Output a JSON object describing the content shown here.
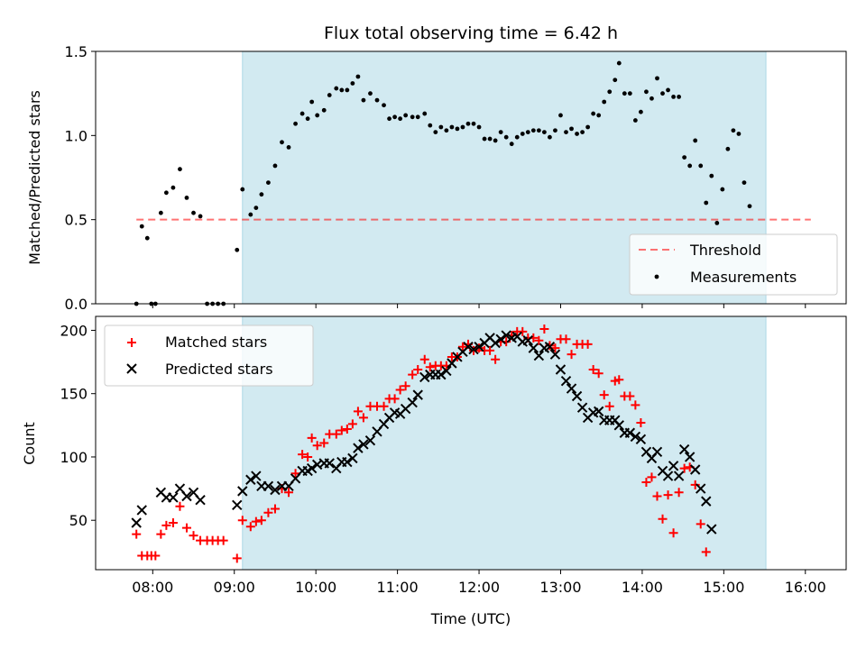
{
  "figure": {
    "title": "Flux total observing time = 6.42 h",
    "xlabel": "Time (UTC)",
    "x_ticks": [
      "08:00",
      "09:00",
      "10:00",
      "11:00",
      "12:00",
      "13:00",
      "14:00",
      "15:00",
      "16:00"
    ]
  },
  "colors": {
    "shade": "#add8e6",
    "threshold": "#ff0000",
    "measurements": "#000000",
    "matched": "#ff0000",
    "predicted": "#000000"
  },
  "chart_data": [
    {
      "type": "scatter",
      "ylabel": "Matched/Predicted stars",
      "xlim": [
        "07:18",
        "16:30"
      ],
      "ylim": [
        0,
        1.5
      ],
      "y_ticks": [
        "0.0",
        "0.5",
        "1.0",
        "1.5"
      ],
      "shaded_span": [
        "09:06",
        "15:31"
      ],
      "legend": {
        "placement": "lower right",
        "threshold_label": "Threshold",
        "measurements_label": "Measurements"
      },
      "threshold": {
        "value": 0.5,
        "from": "07:48",
        "to": "16:04"
      },
      "measurements": [
        [
          "07:48",
          0.0
        ],
        [
          "07:52",
          0.46
        ],
        [
          "07:56",
          0.39
        ],
        [
          "07:59",
          0.0
        ],
        [
          "08:02",
          0.0
        ],
        [
          "08:06",
          0.54
        ],
        [
          "08:10",
          0.66
        ],
        [
          "08:15",
          0.69
        ],
        [
          "08:20",
          0.8
        ],
        [
          "08:25",
          0.63
        ],
        [
          "08:30",
          0.54
        ],
        [
          "08:35",
          0.52
        ],
        [
          "08:40",
          0.0
        ],
        [
          "08:44",
          0.0
        ],
        [
          "08:48",
          0.0
        ],
        [
          "08:52",
          0.0
        ],
        [
          "09:02",
          0.32
        ],
        [
          "09:06",
          0.68
        ],
        [
          "09:12",
          0.53
        ],
        [
          "09:16",
          0.57
        ],
        [
          "09:20",
          0.65
        ],
        [
          "09:25",
          0.72
        ],
        [
          "09:30",
          0.82
        ],
        [
          "09:35",
          0.96
        ],
        [
          "09:40",
          0.93
        ],
        [
          "09:45",
          1.07
        ],
        [
          "09:50",
          1.13
        ],
        [
          "09:54",
          1.1
        ],
        [
          "09:57",
          1.2
        ],
        [
          "10:01",
          1.12
        ],
        [
          "10:06",
          1.15
        ],
        [
          "10:10",
          1.24
        ],
        [
          "10:15",
          1.28
        ],
        [
          "10:19",
          1.27
        ],
        [
          "10:23",
          1.27
        ],
        [
          "10:27",
          1.31
        ],
        [
          "10:31",
          1.35
        ],
        [
          "10:35",
          1.21
        ],
        [
          "10:40",
          1.25
        ],
        [
          "10:45",
          1.21
        ],
        [
          "10:50",
          1.18
        ],
        [
          "10:54",
          1.1
        ],
        [
          "10:58",
          1.11
        ],
        [
          "11:02",
          1.1
        ],
        [
          "11:06",
          1.12
        ],
        [
          "11:11",
          1.11
        ],
        [
          "11:15",
          1.11
        ],
        [
          "11:20",
          1.13
        ],
        [
          "11:24",
          1.06
        ],
        [
          "11:28",
          1.02
        ],
        [
          "11:32",
          1.05
        ],
        [
          "11:36",
          1.03
        ],
        [
          "11:40",
          1.05
        ],
        [
          "11:44",
          1.04
        ],
        [
          "11:48",
          1.05
        ],
        [
          "11:52",
          1.07
        ],
        [
          "11:56",
          1.07
        ],
        [
          "12:00",
          1.05
        ],
        [
          "12:04",
          0.98
        ],
        [
          "12:08",
          0.98
        ],
        [
          "12:12",
          0.97
        ],
        [
          "12:16",
          1.02
        ],
        [
          "12:20",
          0.99
        ],
        [
          "12:24",
          0.95
        ],
        [
          "12:28",
          0.99
        ],
        [
          "12:32",
          1.01
        ],
        [
          "12:36",
          1.02
        ],
        [
          "12:40",
          1.03
        ],
        [
          "12:44",
          1.03
        ],
        [
          "12:48",
          1.02
        ],
        [
          "12:52",
          0.99
        ],
        [
          "12:56",
          1.03
        ],
        [
          "13:00",
          1.12
        ],
        [
          "13:04",
          1.02
        ],
        [
          "13:08",
          1.04
        ],
        [
          "13:12",
          1.01
        ],
        [
          "13:16",
          1.02
        ],
        [
          "13:20",
          1.05
        ],
        [
          "13:24",
          1.13
        ],
        [
          "13:28",
          1.12
        ],
        [
          "13:32",
          1.2
        ],
        [
          "13:36",
          1.26
        ],
        [
          "13:40",
          1.33
        ],
        [
          "13:43",
          1.43
        ],
        [
          "13:47",
          1.25
        ],
        [
          "13:51",
          1.25
        ],
        [
          "13:55",
          1.09
        ],
        [
          "13:59",
          1.14
        ],
        [
          "14:03",
          1.26
        ],
        [
          "14:07",
          1.22
        ],
        [
          "14:11",
          1.34
        ],
        [
          "14:15",
          1.25
        ],
        [
          "14:19",
          1.27
        ],
        [
          "14:23",
          1.23
        ],
        [
          "14:27",
          1.23
        ],
        [
          "14:31",
          0.87
        ],
        [
          "14:35",
          0.82
        ],
        [
          "14:39",
          0.97
        ],
        [
          "14:43",
          0.82
        ],
        [
          "14:47",
          0.6
        ],
        [
          "14:51",
          0.76
        ],
        [
          "14:55",
          0.48
        ],
        [
          "14:59",
          0.68
        ],
        [
          "15:03",
          0.92
        ],
        [
          "15:07",
          1.03
        ],
        [
          "15:11",
          1.01
        ],
        [
          "15:15",
          0.72
        ],
        [
          "15:19",
          0.58
        ]
      ]
    },
    {
      "type": "scatter",
      "ylabel": "Count",
      "xlim": [
        "07:18",
        "16:30"
      ],
      "ylim": [
        11,
        211
      ],
      "y_ticks": [
        "50",
        "100",
        "150",
        "200"
      ],
      "shaded_span": [
        "09:06",
        "15:31"
      ],
      "legend": {
        "placement": "upper left",
        "matched_label": "Matched stars",
        "predicted_label": "Predicted stars"
      },
      "matched": [
        [
          "07:48",
          39
        ],
        [
          "07:52",
          22
        ],
        [
          "07:56",
          22
        ],
        [
          "07:59",
          22
        ],
        [
          "08:02",
          22
        ],
        [
          "08:06",
          39
        ],
        [
          "08:10",
          46
        ],
        [
          "08:15",
          48
        ],
        [
          "08:20",
          61
        ],
        [
          "08:25",
          44
        ],
        [
          "08:30",
          38
        ],
        [
          "08:35",
          34
        ],
        [
          "08:40",
          34
        ],
        [
          "08:44",
          34
        ],
        [
          "08:48",
          34
        ],
        [
          "08:52",
          34
        ],
        [
          "09:02",
          20
        ],
        [
          "09:06",
          50
        ],
        [
          "09:12",
          45
        ],
        [
          "09:16",
          49
        ],
        [
          "09:20",
          50
        ],
        [
          "09:25",
          56
        ],
        [
          "09:30",
          59
        ],
        [
          "09:35",
          75
        ],
        [
          "09:40",
          72
        ],
        [
          "09:45",
          87
        ],
        [
          "09:50",
          102
        ],
        [
          "09:54",
          100
        ],
        [
          "09:57",
          115
        ],
        [
          "10:01",
          109
        ],
        [
          "10:06",
          111
        ],
        [
          "10:10",
          118
        ],
        [
          "10:15",
          118
        ],
        [
          "10:19",
          121
        ],
        [
          "10:23",
          122
        ],
        [
          "10:27",
          126
        ],
        [
          "10:31",
          136
        ],
        [
          "10:35",
          131
        ],
        [
          "10:40",
          140
        ],
        [
          "10:45",
          140
        ],
        [
          "10:50",
          140
        ],
        [
          "10:54",
          146
        ],
        [
          "10:58",
          146
        ],
        [
          "11:02",
          153
        ],
        [
          "11:06",
          156
        ],
        [
          "11:11",
          165
        ],
        [
          "11:15",
          169
        ],
        [
          "11:20",
          177
        ],
        [
          "11:24",
          171
        ],
        [
          "11:28",
          172
        ],
        [
          "11:32",
          172
        ],
        [
          "11:36",
          172
        ],
        [
          "11:40",
          179
        ],
        [
          "11:44",
          179
        ],
        [
          "11:48",
          187
        ],
        [
          "11:52",
          189
        ],
        [
          "11:56",
          184
        ],
        [
          "12:00",
          186
        ],
        [
          "12:04",
          184
        ],
        [
          "12:08",
          184
        ],
        [
          "12:12",
          177
        ],
        [
          "12:16",
          191
        ],
        [
          "12:20",
          191
        ],
        [
          "12:24",
          196
        ],
        [
          "12:28",
          199
        ],
        [
          "12:32",
          199
        ],
        [
          "12:36",
          194
        ],
        [
          "12:40",
          194
        ],
        [
          "12:44",
          192
        ],
        [
          "12:48",
          201
        ],
        [
          "12:52",
          188
        ],
        [
          "12:56",
          186
        ],
        [
          "13:00",
          193
        ],
        [
          "13:04",
          193
        ],
        [
          "13:08",
          181
        ],
        [
          "13:12",
          189
        ],
        [
          "13:16",
          189
        ],
        [
          "13:20",
          189
        ],
        [
          "13:24",
          169
        ],
        [
          "13:28",
          166
        ],
        [
          "13:32",
          149
        ],
        [
          "13:36",
          140
        ],
        [
          "13:40",
          160
        ],
        [
          "13:43",
          161
        ],
        [
          "13:47",
          148
        ],
        [
          "13:51",
          148
        ],
        [
          "13:55",
          141
        ],
        [
          "13:59",
          127
        ],
        [
          "14:03",
          80
        ],
        [
          "14:07",
          84
        ],
        [
          "14:11",
          69
        ],
        [
          "14:15",
          51
        ],
        [
          "14:19",
          70
        ],
        [
          "14:23",
          40
        ],
        [
          "14:27",
          72
        ],
        [
          "14:31",
          91
        ],
        [
          "14:35",
          92
        ],
        [
          "14:39",
          78
        ],
        [
          "14:43",
          47
        ],
        [
          "14:47",
          25
        ]
      ],
      "predicted": [
        [
          "07:48",
          48
        ],
        [
          "07:52",
          58
        ],
        [
          "08:06",
          72
        ],
        [
          "08:10",
          68
        ],
        [
          "08:15",
          68
        ],
        [
          "08:20",
          75
        ],
        [
          "08:25",
          69
        ],
        [
          "08:30",
          72
        ],
        [
          "08:35",
          66
        ],
        [
          "09:02",
          62
        ],
        [
          "09:06",
          73
        ],
        [
          "09:12",
          82
        ],
        [
          "09:16",
          85
        ],
        [
          "09:20",
          77
        ],
        [
          "09:25",
          77
        ],
        [
          "09:30",
          74
        ],
        [
          "09:35",
          77
        ],
        [
          "09:40",
          77
        ],
        [
          "09:45",
          83
        ],
        [
          "09:50",
          89
        ],
        [
          "09:54",
          89
        ],
        [
          "09:57",
          91
        ],
        [
          "10:01",
          94
        ],
        [
          "10:06",
          95
        ],
        [
          "10:10",
          95
        ],
        [
          "10:15",
          91
        ],
        [
          "10:19",
          96
        ],
        [
          "10:23",
          96
        ],
        [
          "10:27",
          99
        ],
        [
          "10:31",
          107
        ],
        [
          "10:35",
          110
        ],
        [
          "10:40",
          113
        ],
        [
          "10:45",
          120
        ],
        [
          "10:50",
          126
        ],
        [
          "10:54",
          131
        ],
        [
          "10:58",
          135
        ],
        [
          "11:02",
          134
        ],
        [
          "11:06",
          138
        ],
        [
          "11:11",
          143
        ],
        [
          "11:15",
          149
        ],
        [
          "11:20",
          163
        ],
        [
          "11:24",
          165
        ],
        [
          "11:28",
          165
        ],
        [
          "11:32",
          165
        ],
        [
          "11:36",
          168
        ],
        [
          "11:40",
          174
        ],
        [
          "11:44",
          179
        ],
        [
          "11:48",
          183
        ],
        [
          "11:52",
          187
        ],
        [
          "11:56",
          185
        ],
        [
          "12:00",
          187
        ],
        [
          "12:04",
          190
        ],
        [
          "12:08",
          194
        ],
        [
          "12:12",
          190
        ],
        [
          "12:16",
          193
        ],
        [
          "12:20",
          196
        ],
        [
          "12:24",
          194
        ],
        [
          "12:28",
          195
        ],
        [
          "12:32",
          191
        ],
        [
          "12:36",
          192
        ],
        [
          "12:40",
          186
        ],
        [
          "12:44",
          180
        ],
        [
          "12:48",
          186
        ],
        [
          "12:52",
          187
        ],
        [
          "12:56",
          181
        ],
        [
          "13:00",
          169
        ],
        [
          "13:04",
          160
        ],
        [
          "13:08",
          154
        ],
        [
          "13:12",
          148
        ],
        [
          "13:16",
          139
        ],
        [
          "13:20",
          131
        ],
        [
          "13:24",
          135
        ],
        [
          "13:28",
          136
        ],
        [
          "13:32",
          129
        ],
        [
          "13:36",
          129
        ],
        [
          "13:40",
          129
        ],
        [
          "13:43",
          125
        ],
        [
          "13:47",
          119
        ],
        [
          "13:51",
          119
        ],
        [
          "13:55",
          116
        ],
        [
          "13:59",
          114
        ],
        [
          "14:03",
          104
        ],
        [
          "14:07",
          99
        ],
        [
          "14:11",
          104
        ],
        [
          "14:15",
          89
        ],
        [
          "14:19",
          85
        ],
        [
          "14:23",
          93
        ],
        [
          "14:27",
          85
        ],
        [
          "14:31",
          106
        ],
        [
          "14:35",
          100
        ],
        [
          "14:39",
          90
        ],
        [
          "14:43",
          75
        ],
        [
          "14:47",
          65
        ],
        [
          "14:51",
          43
        ]
      ]
    }
  ]
}
